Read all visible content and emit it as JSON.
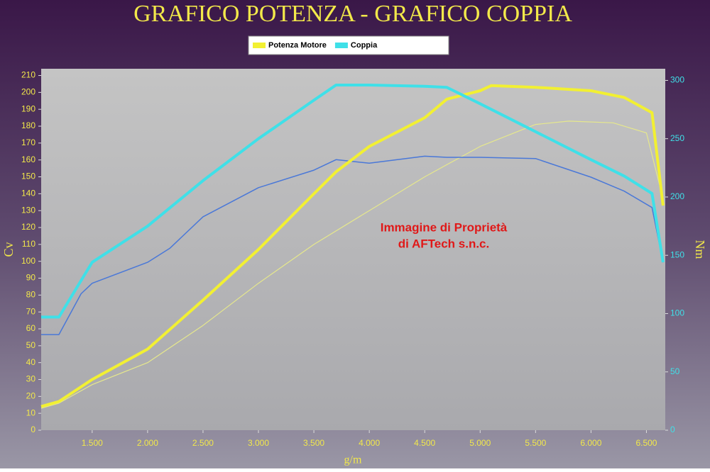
{
  "chart_data": {
    "type": "line",
    "title": "GRAFICO POTENZA - GRAFICO COPPIA",
    "x_label": "g/m",
    "y_label": "Cv",
    "y2_label": "Nm",
    "annotations": [
      "Immagine di Proprietà",
      "di AFTech s.n.c."
    ],
    "xlim": [
      1040,
      6670
    ],
    "xticks": [
      {
        "value": 1500,
        "label": "1.500"
      },
      {
        "value": 2000,
        "label": "2.000"
      },
      {
        "value": 2500,
        "label": "2.500"
      },
      {
        "value": 3000,
        "label": "3.000"
      },
      {
        "value": 3500,
        "label": "3.500"
      },
      {
        "value": 4000,
        "label": "4.000"
      },
      {
        "value": 4500,
        "label": "4.500"
      },
      {
        "value": 5000,
        "label": "5.000"
      },
      {
        "value": 5500,
        "label": "5.500"
      },
      {
        "value": 6000,
        "label": "6.000"
      },
      {
        "value": 6500,
        "label": "6.500"
      }
    ],
    "ylim": [
      0,
      214
    ],
    "yticks": [
      0,
      10,
      20,
      30,
      40,
      50,
      60,
      70,
      80,
      90,
      100,
      110,
      120,
      130,
      140,
      150,
      160,
      170,
      180,
      190,
      200,
      210
    ],
    "y2lim": [
      0,
      310
    ],
    "y2ticks": [
      0,
      50,
      100,
      150,
      200,
      250,
      300
    ],
    "grid": false,
    "series": [
      {
        "name": "Potenza Motore",
        "color": "#f2f032",
        "width": 4,
        "axis": "y",
        "x": [
          1040,
          1200,
          1500,
          2000,
          2500,
          3000,
          3500,
          3700,
          4000,
          4500,
          4700,
          5000,
          5100,
          5500,
          6000,
          6300,
          6550,
          6650
        ],
        "values": [
          14,
          17,
          30,
          48,
          77,
          107,
          140,
          153,
          168,
          185,
          196,
          201,
          204,
          203,
          201,
          197,
          188,
          133
        ]
      },
      {
        "name": "Coppia",
        "color": "#3fe0e8",
        "width": 4,
        "axis": "y2",
        "x": [
          1040,
          1200,
          1500,
          2000,
          2500,
          3000,
          3500,
          3700,
          4000,
          4500,
          4700,
          5000,
          5500,
          6000,
          6300,
          6550,
          6650
        ],
        "values": [
          97,
          97,
          144,
          175,
          214,
          250,
          283,
          296,
          296,
          295,
          294,
          280,
          256,
          232,
          218,
          203,
          144
        ]
      },
      {
        "color": "#e6e88c",
        "width": 1.2,
        "axis": "y",
        "x": [
          1040,
          1200,
          1500,
          2000,
          2500,
          3000,
          3500,
          4000,
          4500,
          5000,
          5500,
          5800,
          6200,
          6500,
          6650
        ],
        "values": [
          13,
          16,
          27,
          40,
          62,
          87,
          110,
          130,
          150,
          168,
          181,
          183,
          182,
          176,
          137
        ]
      },
      {
        "color": "#4a78d8",
        "width": 1.5,
        "axis": "y2",
        "x": [
          1040,
          1200,
          1400,
          1500,
          2000,
          2200,
          2500,
          3000,
          3500,
          3700,
          4000,
          4500,
          4700,
          5000,
          5500,
          6000,
          6300,
          6550,
          6650
        ],
        "values": [
          82,
          82,
          117,
          126,
          144,
          156,
          183,
          208,
          223,
          232,
          229,
          235,
          234,
          234,
          233,
          217,
          205,
          191,
          144
        ]
      }
    ]
  }
}
